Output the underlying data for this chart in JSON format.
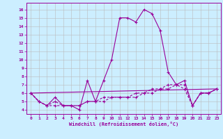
{
  "xlabel": "Windchill (Refroidissement éolien,°C)",
  "background_color": "#cceeff",
  "grid_color": "#bbbbbb",
  "line_color": "#990099",
  "xlim": [
    -0.5,
    23.5
  ],
  "ylim": [
    3.5,
    16.8
  ],
  "yticks": [
    4,
    5,
    6,
    7,
    8,
    9,
    10,
    11,
    12,
    13,
    14,
    15,
    16
  ],
  "xticks": [
    0,
    1,
    2,
    3,
    4,
    5,
    6,
    7,
    8,
    9,
    10,
    11,
    12,
    13,
    14,
    15,
    16,
    17,
    18,
    19,
    20,
    21,
    22,
    23
  ],
  "series1_x": [
    0,
    1,
    2,
    3,
    4,
    5,
    6,
    7,
    8,
    9,
    10,
    11,
    12,
    13,
    14,
    15,
    16,
    17,
    18,
    19,
    20,
    21,
    22,
    23
  ],
  "series1_y": [
    6.0,
    5.0,
    4.5,
    5.5,
    4.5,
    4.5,
    4.0,
    7.5,
    5.0,
    7.5,
    10.0,
    15.0,
    15.0,
    14.5,
    16.0,
    15.5,
    13.5,
    8.5,
    7.0,
    7.5,
    4.5,
    6.0,
    6.0,
    6.5
  ],
  "series2_x": [
    0,
    1,
    2,
    3,
    4,
    5,
    6,
    7,
    8,
    9,
    10,
    11,
    12,
    13,
    14,
    15,
    16,
    17,
    18,
    19,
    20,
    21,
    22,
    23
  ],
  "series2_y": [
    6.0,
    5.0,
    4.5,
    5.0,
    4.5,
    4.5,
    4.5,
    5.0,
    5.0,
    5.5,
    5.5,
    5.5,
    5.5,
    6.0,
    6.0,
    6.5,
    6.5,
    7.0,
    7.0,
    6.5,
    4.5,
    6.0,
    6.0,
    6.5
  ],
  "series3_x": [
    0,
    1,
    2,
    3,
    4,
    5,
    6,
    7,
    8,
    9,
    10,
    11,
    12,
    13,
    14,
    15,
    16,
    17,
    18,
    19,
    20,
    21,
    22,
    23
  ],
  "series3_y": [
    6.0,
    5.0,
    4.5,
    4.5,
    4.5,
    4.5,
    4.5,
    5.0,
    5.0,
    5.0,
    5.5,
    5.5,
    5.5,
    5.5,
    6.0,
    6.0,
    6.5,
    6.5,
    7.0,
    7.0,
    4.5,
    6.0,
    6.0,
    6.5
  ],
  "series4_x": [
    0,
    23
  ],
  "series4_y": [
    6.0,
    6.5
  ]
}
